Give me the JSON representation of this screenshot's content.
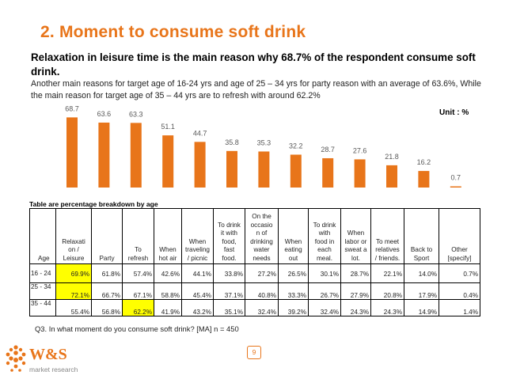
{
  "slide": {
    "title": "2. Moment to consume soft drink",
    "subtitle": "Relaxation in leisure  time is the main reason why  68.7% of the respondent consume soft drink.",
    "description": "Another main reasons for target age of 16-24 yrs and age of 25 – 34 yrs for party reason with an average of 63.6%, While the main reason for target age of 35 – 44 yrs are to refresh with around 62.2%",
    "unit": "Unit : %",
    "table_caption": "Table are percentage breakdown by age",
    "footnote": "Q3. In what moment do you consume soft drink? [MA] n = 450",
    "page_number": "9",
    "logo_main": "W&S",
    "logo_sub": "market research"
  },
  "colors": {
    "accent": "#e8751a",
    "bar": "#e8751a",
    "highlight": "#ffff00",
    "label": "#595959"
  },
  "chart_data": {
    "type": "bar",
    "title": "",
    "xlabel": "",
    "ylabel": "",
    "ylim": [
      0,
      75
    ],
    "grid": false,
    "categories": [
      "Relaxation / Leisure",
      "Party",
      "To refresh",
      "When hot air",
      "When traveling / picnic",
      "To drink it with food, fast food.",
      "On the occasion of drinking water needs",
      "When eating out",
      "To drink with food in each meal.",
      "When labor or sweat a lot.",
      "To meet relatives / friends.",
      "Back to Sport",
      "Other [specify]"
    ],
    "values": [
      68.7,
      63.6,
      63.3,
      51.1,
      44.7,
      35.8,
      35.3,
      32.2,
      28.7,
      27.6,
      21.8,
      16.2,
      0.7
    ],
    "value_labels": [
      "68.7",
      "63.6",
      "63.3",
      "51.1",
      "44.7",
      "35.8",
      "35.3",
      "32.2",
      "28.7",
      "27.6",
      "21.8",
      "16.2",
      "0.7"
    ]
  },
  "table": {
    "headers": [
      [
        "Age"
      ],
      [
        "Relaxati",
        "on /",
        "Leisure"
      ],
      [
        "Party"
      ],
      [
        "To",
        "refresh"
      ],
      [
        "When",
        "hot air"
      ],
      [
        "When",
        "traveling",
        "/ picnic"
      ],
      [
        "To drink",
        "it with",
        "food,",
        "fast",
        "food."
      ],
      [
        "On the",
        "occasio",
        "n of",
        "drinking",
        "water",
        "needs"
      ],
      [
        "When",
        "eating",
        "out"
      ],
      [
        "To drink",
        "with",
        "food in",
        "each",
        "meal."
      ],
      [
        "When",
        "labor or",
        "sweat a",
        "lot."
      ],
      [
        "To meet",
        "relatives",
        "/ friends."
      ],
      [
        "Back to",
        "Sport"
      ],
      [
        "Other",
        "[specify]"
      ]
    ],
    "rows": [
      {
        "age": "16 - 24",
        "values": [
          "69.9%",
          "61.8%",
          "57.4%",
          "42.6%",
          "44.1%",
          "33.8%",
          "27.2%",
          "26.5%",
          "30.1%",
          "28.7%",
          "22.1%",
          "14.0%",
          "0.7%"
        ],
        "highlight": [
          0
        ]
      },
      {
        "age": "25 - 34",
        "values": [
          "72.1%",
          "66.7%",
          "67.1%",
          "58.8%",
          "45.4%",
          "37.1%",
          "40.8%",
          "33.3%",
          "26.7%",
          "27.9%",
          "20.8%",
          "17.9%",
          "0.4%"
        ],
        "highlight": [
          0
        ]
      },
      {
        "age": "35 - 44",
        "values": [
          "55.4%",
          "56.8%",
          "62.2%",
          "41.9%",
          "43.2%",
          "35.1%",
          "32.4%",
          "39.2%",
          "32.4%",
          "24.3%",
          "24.3%",
          "14.9%",
          "1.4%"
        ],
        "highlight": [
          2
        ]
      }
    ]
  }
}
